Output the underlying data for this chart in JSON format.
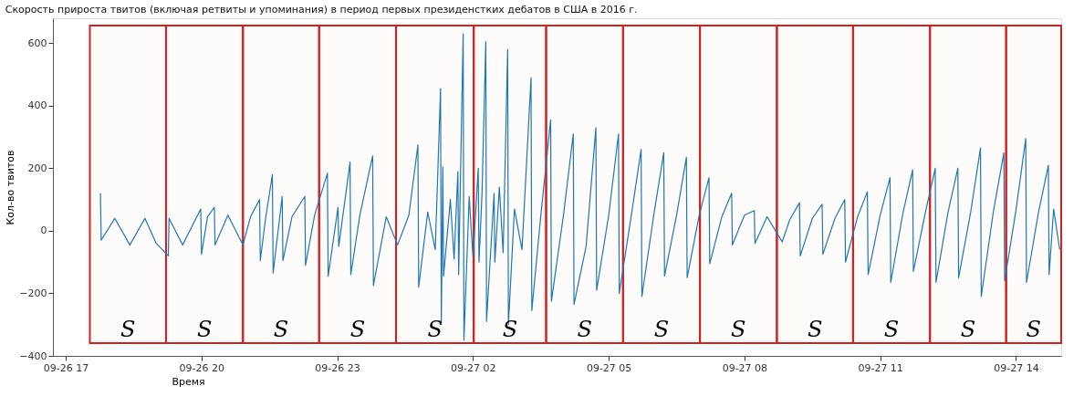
{
  "chart_data": {
    "type": "line",
    "title": "Скорость прироста твитов (включая ретвиты и упоминания) в период первых президенстких дебатов в США в 2016 г.",
    "xlabel": "Время",
    "ylabel": "Кол-во твитов",
    "xlim": [
      "2016-09-26T16:43",
      "2016-09-27T15:00"
    ],
    "xticks": [
      {
        "value": "2016-09-26T17:00",
        "label": "09-26 17"
      },
      {
        "value": "2016-09-26T20:00",
        "label": "09-26 20"
      },
      {
        "value": "2016-09-26T23:00",
        "label": "09-26 23"
      },
      {
        "value": "2016-09-27T02:00",
        "label": "09-27 02"
      },
      {
        "value": "2016-09-27T05:00",
        "label": "09-27 05"
      },
      {
        "value": "2016-09-27T08:00",
        "label": "09-27 08"
      },
      {
        "value": "2016-09-27T11:00",
        "label": "09-27 11"
      },
      {
        "value": "2016-09-27T14:00",
        "label": "09-27 14"
      }
    ],
    "ylim": [
      -400,
      680
    ],
    "yticks": [
      -400,
      -200,
      0,
      200,
      400,
      600
    ],
    "grid": false,
    "line_style": "solid",
    "x": [
      "2016-09-26T17:46",
      "2016-09-26T17:47",
      "2016-09-26T18:05",
      "2016-09-26T18:25",
      "2016-09-26T18:45",
      "2016-09-26T19:00",
      "2016-09-26T19:16",
      "2016-09-26T19:17",
      "2016-09-26T19:35",
      "2016-09-26T19:59",
      "2016-09-26T20:00",
      "2016-09-26T20:08",
      "2016-09-26T20:17",
      "2016-09-26T20:18",
      "2016-09-26T20:35",
      "2016-09-26T20:55",
      "2016-09-26T21:05",
      "2016-09-26T21:17",
      "2016-09-26T21:18",
      "2016-09-26T21:25",
      "2016-09-26T21:34",
      "2016-09-26T21:35",
      "2016-09-26T21:47",
      "2016-09-26T21:48",
      "2016-09-26T22:00",
      "2016-09-26T22:17",
      "2016-09-26T22:18",
      "2016-09-26T22:30",
      "2016-09-26T22:47",
      "2016-09-26T22:48",
      "2016-09-26T23:01",
      "2016-09-26T23:02",
      "2016-09-26T23:17",
      "2016-09-26T23:18",
      "2016-09-26T23:30",
      "2016-09-26T23:47",
      "2016-09-26T23:48",
      "2016-09-27T00:05",
      "2016-09-27T00:20",
      "2016-09-27T00:35",
      "2016-09-27T00:47",
      "2016-09-27T00:48",
      "2016-09-27T01:00",
      "2016-09-27T01:10",
      "2016-09-27T01:17",
      "2016-09-27T01:18",
      "2016-09-27T01:20",
      "2016-09-27T01:21",
      "2016-09-27T01:30",
      "2016-09-27T01:35",
      "2016-09-27T01:40",
      "2016-09-27T01:41",
      "2016-09-27T01:47",
      "2016-09-27T01:48",
      "2016-09-27T01:55",
      "2016-09-27T02:00",
      "2016-09-27T02:07",
      "2016-09-27T02:08",
      "2016-09-27T02:12",
      "2016-09-27T02:17",
      "2016-09-27T02:18",
      "2016-09-27T02:28",
      "2016-09-27T02:29",
      "2016-09-27T02:35",
      "2016-09-27T02:40",
      "2016-09-27T02:46",
      "2016-09-27T02:47",
      "2016-09-27T02:55",
      "2016-09-27T03:05",
      "2016-09-27T03:17",
      "2016-09-27T03:18",
      "2016-09-27T03:30",
      "2016-09-27T03:43",
      "2016-09-27T03:44",
      "2016-09-27T04:00",
      "2016-09-27T04:13",
      "2016-09-27T04:14",
      "2016-09-27T04:30",
      "2016-09-27T04:43",
      "2016-09-27T04:44",
      "2016-09-27T05:00",
      "2016-09-27T05:13",
      "2016-09-27T05:14",
      "2016-09-27T05:30",
      "2016-09-27T05:43",
      "2016-09-27T05:44",
      "2016-09-27T06:00",
      "2016-09-27T06:13",
      "2016-09-27T06:14",
      "2016-09-27T06:30",
      "2016-09-27T06:43",
      "2016-09-27T06:44",
      "2016-09-27T07:00",
      "2016-09-27T07:13",
      "2016-09-27T07:14",
      "2016-09-27T07:30",
      "2016-09-27T07:43",
      "2016-09-27T07:44",
      "2016-09-27T08:00",
      "2016-09-27T08:13",
      "2016-09-27T08:14",
      "2016-09-27T08:30",
      "2016-09-27T08:50",
      "2016-09-27T09:00",
      "2016-09-27T09:13",
      "2016-09-27T09:14",
      "2016-09-27T09:30",
      "2016-09-27T09:43",
      "2016-09-27T09:44",
      "2016-09-27T10:00",
      "2016-09-27T10:13",
      "2016-09-27T10:14",
      "2016-09-27T10:30",
      "2016-09-27T10:43",
      "2016-09-27T10:44",
      "2016-09-27T11:00",
      "2016-09-27T11:13",
      "2016-09-27T11:14",
      "2016-09-27T11:30",
      "2016-09-27T11:43",
      "2016-09-27T11:44",
      "2016-09-27T12:00",
      "2016-09-27T12:13",
      "2016-09-27T12:14",
      "2016-09-27T12:30",
      "2016-09-27T12:43",
      "2016-09-27T12:44",
      "2016-09-27T13:00",
      "2016-09-27T13:13",
      "2016-09-27T13:14",
      "2016-09-27T13:30",
      "2016-09-27T13:44",
      "2016-09-27T13:45",
      "2016-09-27T14:00",
      "2016-09-27T14:13",
      "2016-09-27T14:14",
      "2016-09-27T14:30",
      "2016-09-27T14:43",
      "2016-09-27T14:44",
      "2016-09-27T14:50",
      "2016-09-27T14:58"
    ],
    "series": [
      {
        "color": "#1f77b4",
        "values": [
          120,
          -30,
          40,
          -45,
          40,
          -40,
          -80,
          40,
          -45,
          70,
          -75,
          45,
          75,
          -45,
          50,
          -45,
          45,
          100,
          -95,
          40,
          180,
          -135,
          110,
          -95,
          45,
          110,
          -110,
          50,
          185,
          -145,
          75,
          -50,
          220,
          -140,
          50,
          240,
          -175,
          45,
          -45,
          50,
          275,
          -180,
          60,
          -60,
          455,
          -300,
          205,
          -145,
          100,
          -90,
          190,
          -140,
          630,
          -350,
          110,
          -85,
          200,
          -100,
          120,
          605,
          -290,
          120,
          -100,
          140,
          -70,
          580,
          -300,
          70,
          -60,
          490,
          -255,
          50,
          355,
          -225,
          50,
          310,
          -235,
          -50,
          330,
          -190,
          50,
          310,
          -200,
          50,
          260,
          -210,
          55,
          250,
          -145,
          50,
          235,
          -150,
          50,
          170,
          -105,
          45,
          120,
          -45,
          50,
          65,
          -40,
          45,
          -35,
          35,
          90,
          -80,
          40,
          85,
          -75,
          40,
          100,
          -100,
          45,
          125,
          -140,
          50,
          170,
          -165,
          55,
          195,
          -130,
          60,
          200,
          -165,
          60,
          200,
          -150,
          60,
          265,
          -210,
          60,
          250,
          -160,
          65,
          295,
          -165,
          60,
          210,
          -140,
          70,
          -60
        ]
      }
    ],
    "bands": [
      {
        "axis": "x",
        "from": "2016-09-26T17:32",
        "to": "2016-09-26T19:13",
        "label": "S",
        "color": "#d62020"
      },
      {
        "axis": "x",
        "from": "2016-09-26T19:13",
        "to": "2016-09-26T20:55",
        "label": "S",
        "color": "#d62020"
      },
      {
        "axis": "x",
        "from": "2016-09-26T20:55",
        "to": "2016-09-26T22:36",
        "label": "S",
        "color": "#d62020"
      },
      {
        "axis": "x",
        "from": "2016-09-26T22:36",
        "to": "2016-09-27T00:18",
        "label": "S",
        "color": "#d62020"
      },
      {
        "axis": "x",
        "from": "2016-09-27T00:18",
        "to": "2016-09-27T02:01",
        "label": "S",
        "color": "#d62020"
      },
      {
        "axis": "x",
        "from": "2016-09-27T02:01",
        "to": "2016-09-27T03:37",
        "label": "S",
        "color": "#d62020"
      },
      {
        "axis": "x",
        "from": "2016-09-27T03:37",
        "to": "2016-09-27T05:19",
        "label": "S",
        "color": "#d62020"
      },
      {
        "axis": "x",
        "from": "2016-09-27T05:19",
        "to": "2016-09-27T07:01",
        "label": "S",
        "color": "#d62020"
      },
      {
        "axis": "x",
        "from": "2016-09-27T07:01",
        "to": "2016-09-27T08:43",
        "label": "S",
        "color": "#d62020"
      },
      {
        "axis": "x",
        "from": "2016-09-27T08:43",
        "to": "2016-09-27T10:24",
        "label": "S",
        "color": "#d62020"
      },
      {
        "axis": "x",
        "from": "2016-09-27T10:24",
        "to": "2016-09-27T12:06",
        "label": "S",
        "color": "#d62020"
      },
      {
        "axis": "x",
        "from": "2016-09-27T12:06",
        "to": "2016-09-27T13:47",
        "label": "S",
        "color": "#d62020"
      },
      {
        "axis": "x",
        "from": "2016-09-27T13:47",
        "to": "2016-09-27T15:00",
        "label": "S",
        "color": "#d62020"
      }
    ]
  }
}
